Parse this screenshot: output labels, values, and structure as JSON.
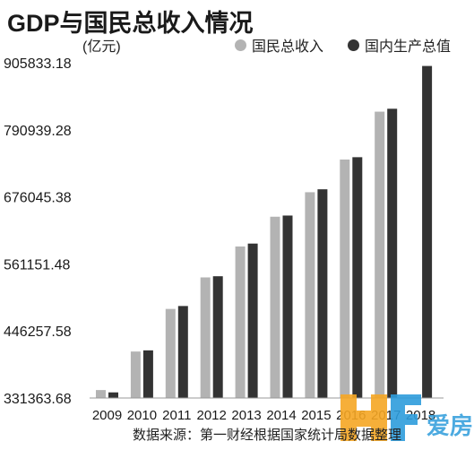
{
  "chart_data": {
    "type": "bar",
    "title": "GDP与国民总收入情况",
    "unit_label": "(亿元)",
    "categories": [
      "2009",
      "2010",
      "2011",
      "2012",
      "2013",
      "2014",
      "2015",
      "2016",
      "2017",
      "2018"
    ],
    "series": [
      {
        "name": "国民总收入",
        "color": "#b3b3b3",
        "values": [
          345000,
          411000,
          484000,
          538000,
          591000,
          642000,
          684000,
          740000,
          822000,
          null
        ]
      },
      {
        "name": "国内生产总值",
        "color": "#333333",
        "values": [
          341000,
          413000,
          489000,
          540000,
          596000,
          644000,
          689000,
          744000,
          827000,
          900309
        ]
      }
    ],
    "y_ticks": [
      "905833.18",
      "790939.28",
      "676045.38",
      "561151.48",
      "446257.58",
      "331363.68"
    ],
    "ylim": [
      331363.68,
      905833.18
    ],
    "grid": false,
    "legend_position": "top-right",
    "source": "数据来源：第一财经根据国家统计局数据整理",
    "watermark": "爱房"
  },
  "colors": {
    "gni": "#b3b3b3",
    "gdp": "#333333",
    "axis": "#999999",
    "watermark_orange": "#f5a623",
    "watermark_blue": "#2d9cdb"
  }
}
